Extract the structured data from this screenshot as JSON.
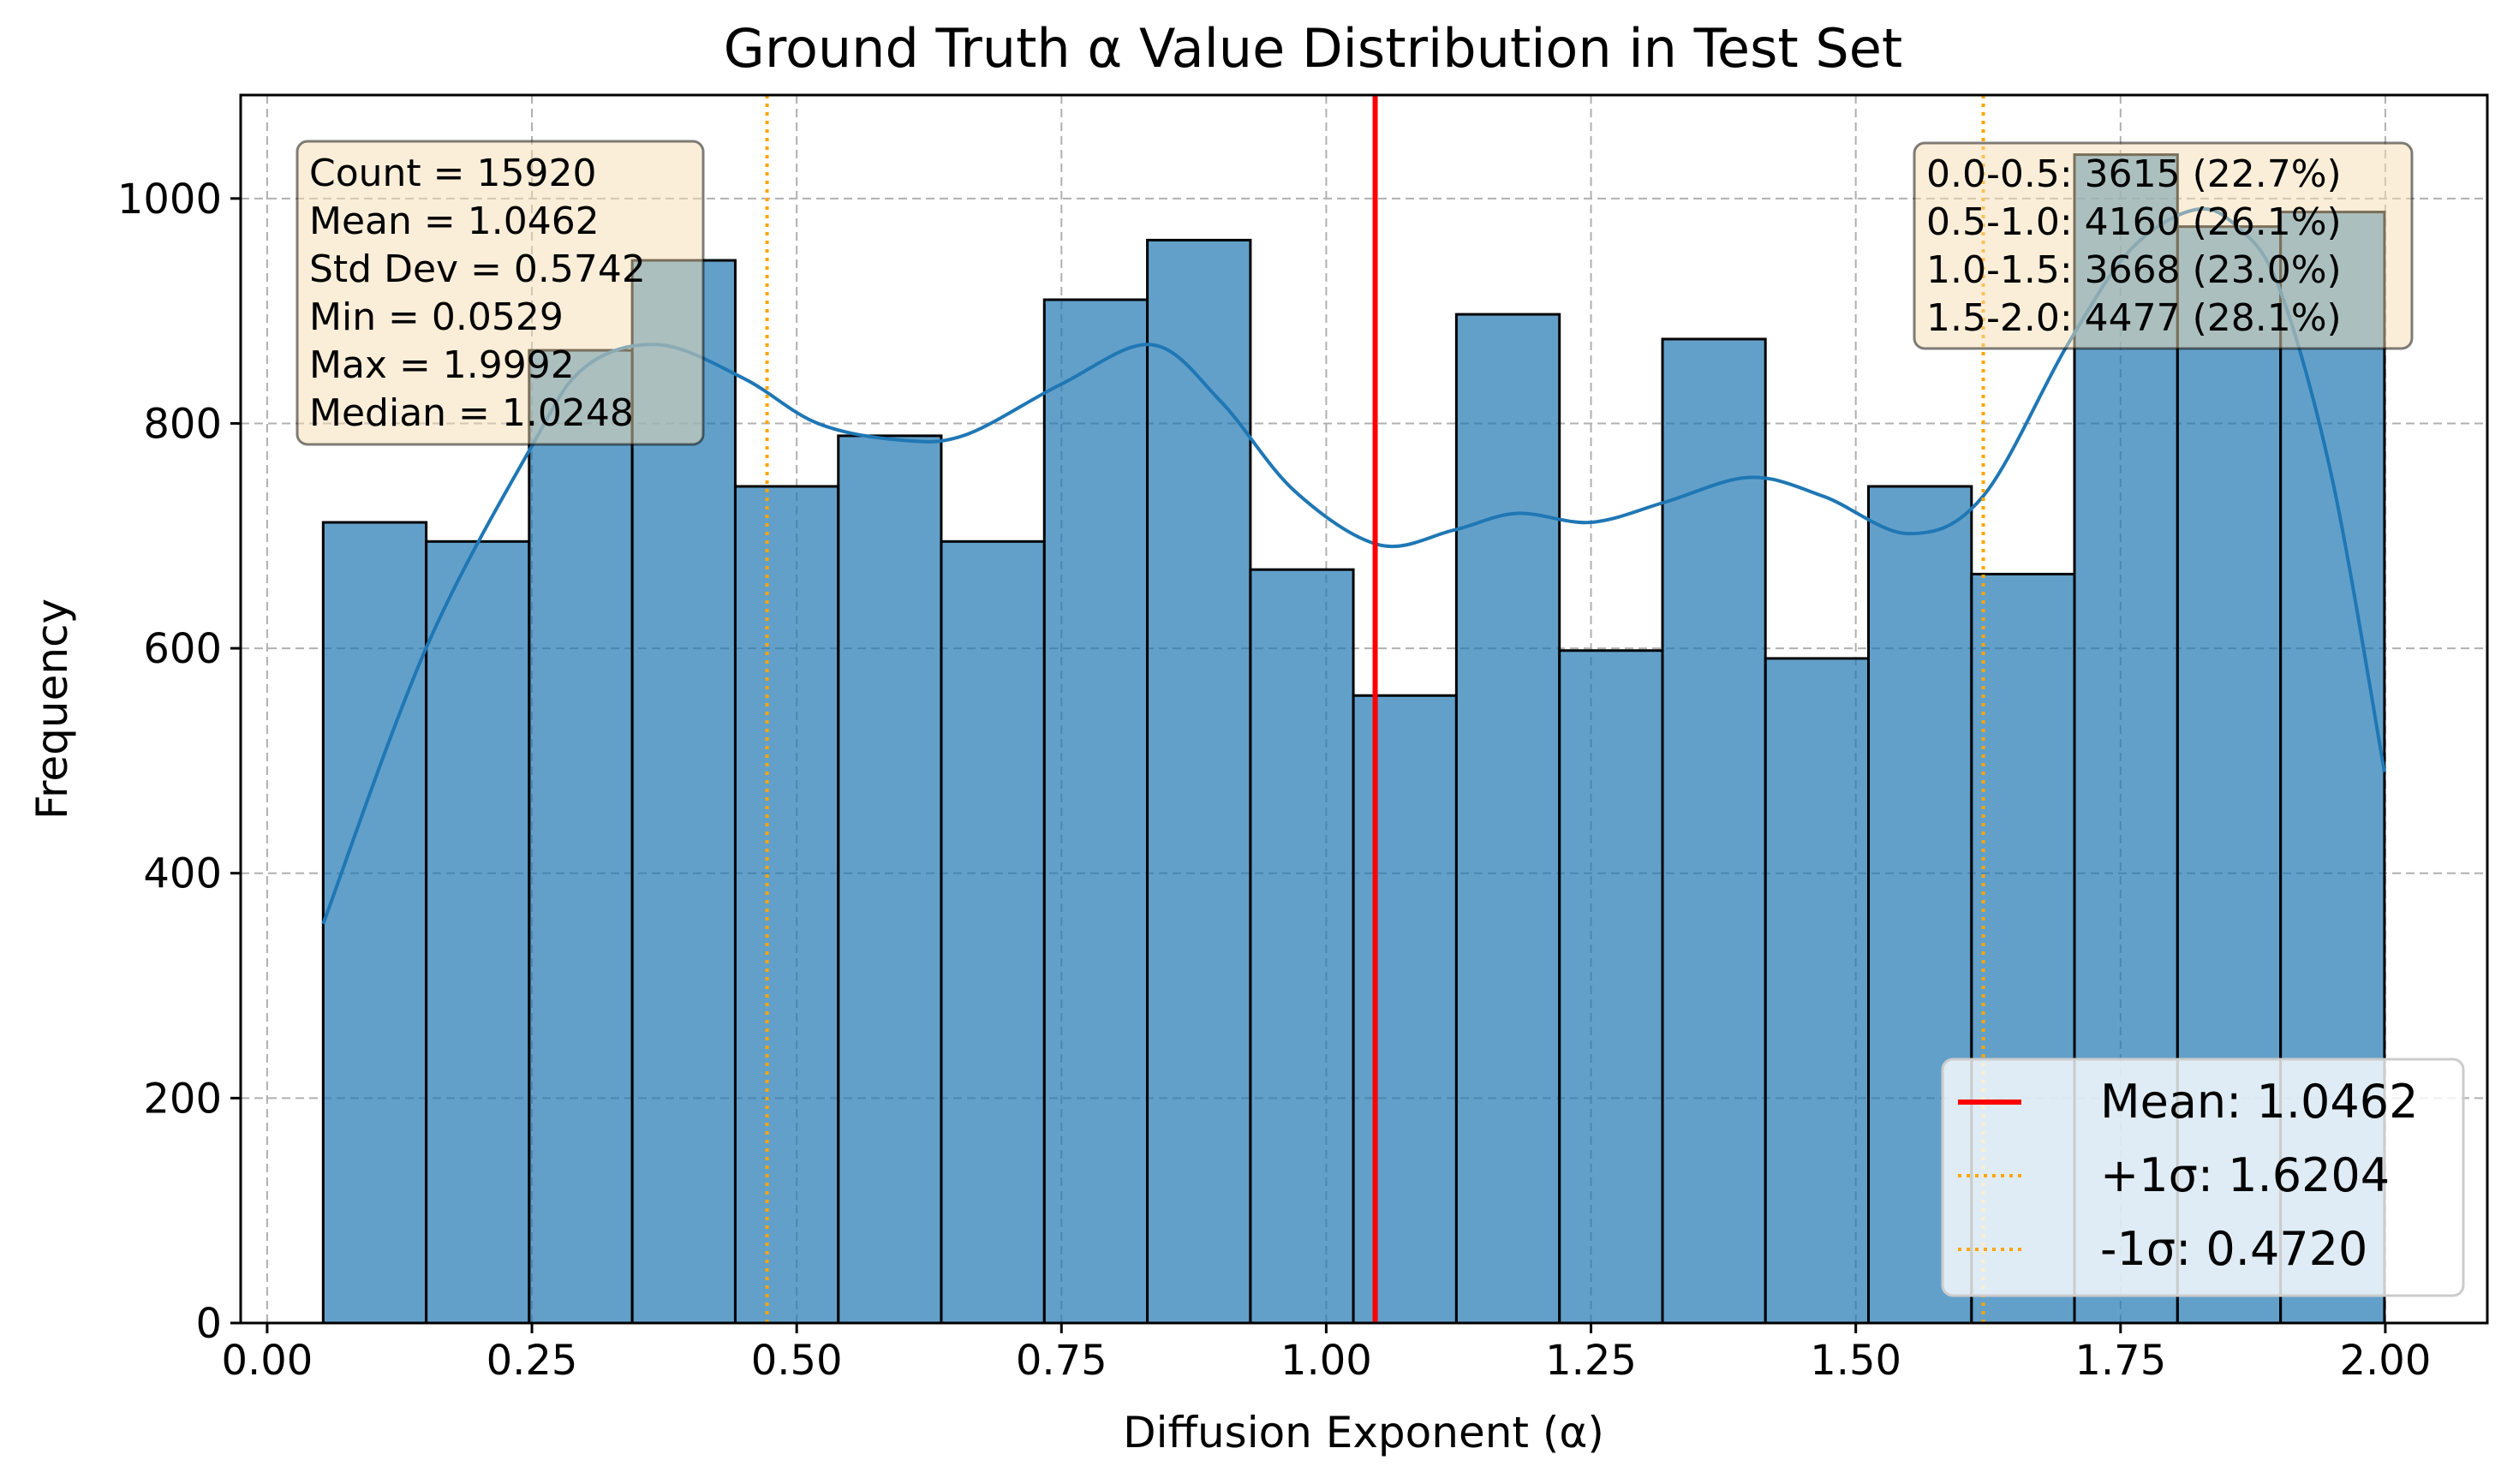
{
  "chart_data": {
    "type": "bar",
    "title": "Ground Truth α Value Distribution in Test Set",
    "xlabel": "Diffusion Exponent (α)",
    "ylabel": "Frequency",
    "xlim": [
      -0.025,
      2.0963
    ],
    "ylim": [
      0,
      1092
    ],
    "xticks": [
      "0.00",
      "0.25",
      "0.50",
      "0.75",
      "1.00",
      "1.25",
      "1.50",
      "1.75",
      "2.00"
    ],
    "xtick_values": [
      0,
      0.25,
      0.5,
      0.75,
      1.0,
      1.25,
      1.5,
      1.75,
      2.0
    ],
    "yticks": [
      "0",
      "200",
      "400",
      "600",
      "800",
      "1000"
    ],
    "ytick_values": [
      0,
      200,
      400,
      600,
      800,
      1000
    ],
    "grid": true,
    "bar_color": "#1f77b4",
    "bins": [
      {
        "x0": 0.0529,
        "x1": 0.1502,
        "count": 712
      },
      {
        "x0": 0.1502,
        "x1": 0.2474,
        "count": 695
      },
      {
        "x0": 0.2474,
        "x1": 0.3447,
        "count": 865
      },
      {
        "x0": 0.3447,
        "x1": 0.442,
        "count": 945
      },
      {
        "x0": 0.442,
        "x1": 0.5393,
        "count": 744
      },
      {
        "x0": 0.5393,
        "x1": 0.6365,
        "count": 789
      },
      {
        "x0": 0.6365,
        "x1": 0.7338,
        "count": 695
      },
      {
        "x0": 0.7338,
        "x1": 0.8311,
        "count": 910
      },
      {
        "x0": 0.8311,
        "x1": 0.9284,
        "count": 963
      },
      {
        "x0": 0.9284,
        "x1": 1.0256,
        "count": 670
      },
      {
        "x0": 1.0256,
        "x1": 1.1229,
        "count": 558
      },
      {
        "x0": 1.1229,
        "x1": 1.2202,
        "count": 897
      },
      {
        "x0": 1.2202,
        "x1": 1.3175,
        "count": 598
      },
      {
        "x0": 1.3175,
        "x1": 1.4147,
        "count": 875
      },
      {
        "x0": 1.4147,
        "x1": 1.512,
        "count": 591
      },
      {
        "x0": 1.512,
        "x1": 1.6093,
        "count": 744
      },
      {
        "x0": 1.6093,
        "x1": 1.7065,
        "count": 666
      },
      {
        "x0": 1.7065,
        "x1": 1.8038,
        "count": 1039
      },
      {
        "x0": 1.8038,
        "x1": 1.9011,
        "count": 975
      },
      {
        "x0": 1.9011,
        "x1": 1.9992,
        "count": 988
      }
    ],
    "kde": {
      "color": "#1f77b4",
      "x": [
        0.0529,
        0.15,
        0.25,
        0.3,
        0.37,
        0.45,
        0.52,
        0.6,
        0.66,
        0.75,
        0.835,
        0.9,
        0.97,
        1.05,
        1.12,
        1.18,
        1.25,
        1.32,
        1.4,
        1.47,
        1.55,
        1.62,
        1.7,
        1.76,
        1.82,
        1.86,
        1.9,
        1.95,
        1.9992
      ],
      "y": [
        355,
        600,
        780,
        850,
        870,
        840,
        800,
        785,
        790,
        835,
        870,
        820,
        740,
        692,
        705,
        720,
        712,
        730,
        752,
        735,
        702,
        735,
        870,
        955,
        990,
        975,
        920,
        750,
        490
      ]
    },
    "vlines": [
      {
        "x": 1.0462,
        "label": "Mean: 1.0462",
        "color": "#ff0000",
        "style": "solid"
      },
      {
        "x": 1.6204,
        "label": "+1σ: 1.6204",
        "color": "#ffa500",
        "style": "dotted"
      },
      {
        "x": 0.472,
        "label": "-1σ: 0.4720",
        "color": "#ffa500",
        "style": "dotted"
      }
    ],
    "stats_box": [
      "Count = 15920",
      "Mean = 1.0462",
      "Std Dev = 0.5742",
      "Min = 0.0529",
      "Max = 1.9992",
      "Median = 1.0248"
    ],
    "range_box": [
      "0.0-0.5: 3615 (22.7%)",
      "0.5-1.0: 4160 (26.1%)",
      "1.0-1.5: 3668 (23.0%)",
      "1.5-2.0: 4477 (28.1%)"
    ],
    "legend_position": "lower-right",
    "box_color": "#f5deb3"
  }
}
